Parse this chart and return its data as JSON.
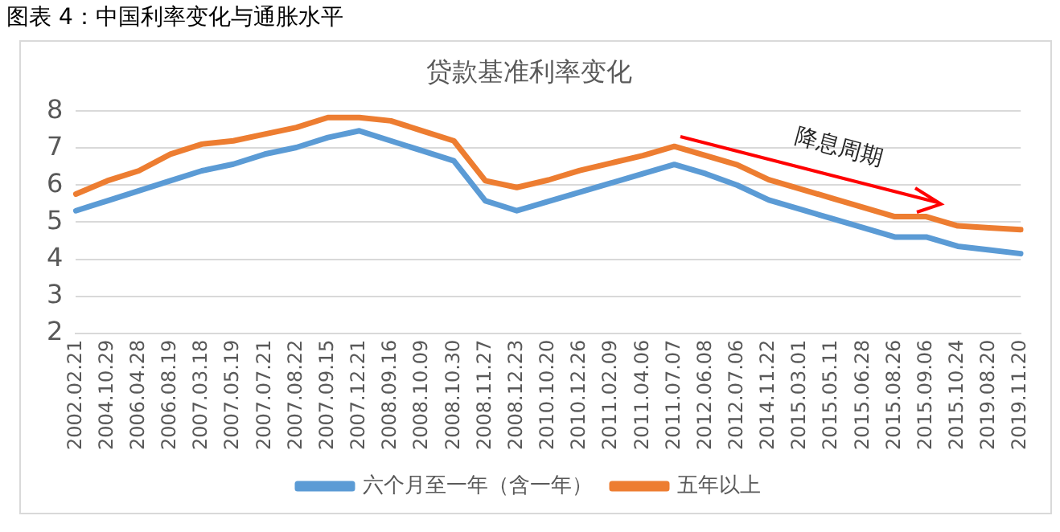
{
  "chart_data": {
    "type": "line",
    "title": "贷款基准利率变化",
    "categories": [
      "2002.02.21",
      "2004.10.29",
      "2006.04.28",
      "2006.08.19",
      "2007.03.18",
      "2007.05.19",
      "2007.07.21",
      "2007.08.22",
      "2007.09.15",
      "2007.12.21",
      "2008.09.16",
      "2008.10.09",
      "2008.10.30",
      "2008.11.27",
      "2008.12.23",
      "2010.10.20",
      "2010.12.26",
      "2011.02.09",
      "2011.04.06",
      "2011.07.07",
      "2012.06.08",
      "2012.07.06",
      "2014.11.22",
      "2015.03.01",
      "2015.05.11",
      "2015.06.28",
      "2015.08.26",
      "2015.09.06",
      "2015.10.24",
      "2019.08.20",
      "2019.11.20"
    ],
    "series": [
      {
        "name": "六个月至一年（含一年）",
        "color": "#5b9bd5",
        "values": [
          5.31,
          5.58,
          5.85,
          6.12,
          6.39,
          6.57,
          6.84,
          7.02,
          7.29,
          7.47,
          7.2,
          6.93,
          6.66,
          5.58,
          5.31,
          5.56,
          5.81,
          6.06,
          6.31,
          6.56,
          6.31,
          6.0,
          5.6,
          5.35,
          5.1,
          4.85,
          4.6,
          4.6,
          4.35,
          4.25,
          4.15
        ]
      },
      {
        "name": "五年以上",
        "color": "#ed7d31",
        "values": [
          5.76,
          6.12,
          6.39,
          6.84,
          7.11,
          7.2,
          7.38,
          7.56,
          7.83,
          7.83,
          7.74,
          7.47,
          7.2,
          6.12,
          5.94,
          6.14,
          6.4,
          6.6,
          6.8,
          7.05,
          6.8,
          6.55,
          6.15,
          5.9,
          5.65,
          5.4,
          5.15,
          5.15,
          4.9,
          4.85,
          4.8
        ]
      }
    ],
    "ylim": [
      2,
      8
    ],
    "yticks": [
      2,
      3,
      4,
      5,
      6,
      7,
      8
    ],
    "grid": "y",
    "legend": "bottom",
    "marker": "none",
    "line_style": "solid",
    "annotations": [
      "图表 4：中国利率变化与通胀水平",
      "降息周期"
    ]
  }
}
